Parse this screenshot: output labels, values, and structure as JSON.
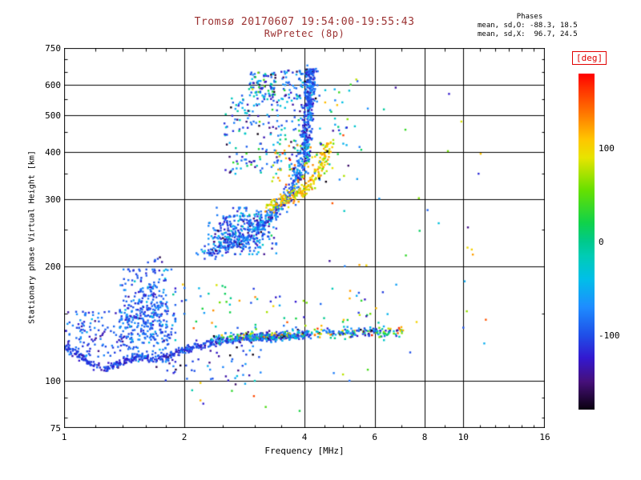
{
  "header": {
    "title": "Tromsø 20170607 19:54:00-19:55:43",
    "subtitle": "RwPretec (8p)",
    "stats": {
      "line0": "Phases",
      "line1": "mean, sd,O: -88.3, 18.5",
      "line2": "mean, sd,X:  96.7, 24.5"
    }
  },
  "colors": {
    "title": "#9b3030",
    "deg_label": "#e00000",
    "axis": "#000000",
    "background": "#ffffff"
  },
  "chart_data": {
    "type": "scatter",
    "title": "Tromsø 20170607 19:54:00-19:55:43",
    "subtitle": "RwPretec (8p)",
    "xlabel": "Frequency [MHz]",
    "ylabel": "Stationary phase Virtual Height [km]",
    "x_scale": "log",
    "y_scale": "log",
    "xlim": [
      1,
      16
    ],
    "ylim": [
      75,
      750
    ],
    "x_ticks": [
      1,
      2,
      4,
      6,
      8,
      10,
      16
    ],
    "x_tick_labels": [
      "1",
      "2",
      "4",
      "6",
      "8",
      "10",
      "16"
    ],
    "x_minor_ticks": [
      1.2,
      1.4,
      1.6,
      1.8,
      2.5,
      3,
      3.5,
      4.5,
      5,
      5.5,
      7,
      9,
      11,
      12,
      13,
      14,
      15
    ],
    "y_ticks": [
      75,
      100,
      200,
      300,
      400,
      500,
      600,
      750
    ],
    "y_tick_labels": [
      "75",
      "100",
      "200",
      "300",
      "400",
      "500",
      "600",
      "750"
    ],
    "y_minor_ticks": [
      80,
      90,
      150,
      250,
      350,
      450,
      550,
      650,
      700
    ],
    "grid_x": [
      2,
      4,
      6,
      8,
      10
    ],
    "grid_y": [
      100,
      200,
      300,
      400,
      500,
      600
    ],
    "grid": true,
    "legend": "colorbar-right",
    "stats_o": {
      "mean": -88.3,
      "sd": 18.5
    },
    "stats_x": {
      "mean": 96.7,
      "sd": 24.5
    },
    "colorbar": {
      "label": "[deg]",
      "ticks": [
        100,
        0,
        -100
      ],
      "tick_labels": [
        "100",
        "0",
        "-100"
      ],
      "range": [
        -180,
        180
      ],
      "stops": [
        [
          -180,
          "#0a000f"
        ],
        [
          -150,
          "#46107a"
        ],
        [
          -125,
          "#3318cf"
        ],
        [
          -100,
          "#1f4fe8"
        ],
        [
          -70,
          "#1e8dff"
        ],
        [
          -40,
          "#00bfe8"
        ],
        [
          -15,
          "#00ccb4"
        ],
        [
          0,
          "#00c98c"
        ],
        [
          20,
          "#10d24a"
        ],
        [
          55,
          "#66e000"
        ],
        [
          90,
          "#e8e400"
        ],
        [
          110,
          "#ffc400"
        ],
        [
          140,
          "#ff7000"
        ],
        [
          165,
          "#ff2e00"
        ],
        [
          180,
          "#ff0000"
        ]
      ]
    },
    "clusters": [
      {
        "name": "bottom-trace-dense",
        "kind": "path",
        "pts": [
          [
            1.0,
            122
          ],
          [
            1.08,
            117
          ],
          [
            1.17,
            110
          ],
          [
            1.28,
            107
          ],
          [
            1.4,
            112
          ],
          [
            1.55,
            116
          ],
          [
            1.7,
            113
          ],
          [
            1.85,
            117
          ],
          [
            2.0,
            120
          ],
          [
            2.2,
            124
          ],
          [
            2.5,
            127
          ],
          [
            2.9,
            129
          ],
          [
            3.3,
            130
          ],
          [
            3.7,
            131
          ],
          [
            4.1,
            132
          ]
        ],
        "n": 520,
        "jf": 0.004,
        "jh": 0.005,
        "phase": {
          "mean": -108,
          "sd": 16
        }
      },
      {
        "name": "bottom-left-cloud",
        "kind": "blob",
        "f": [
          1.0,
          1.5
        ],
        "h": [
          115,
          152
        ],
        "n": 150,
        "phase": {
          "mean": -92,
          "sd": 22
        }
      },
      {
        "name": "e-region-burst",
        "kind": "blob",
        "dist": "gauss",
        "f": [
          1.38,
          1.9
        ],
        "h": [
          112,
          196
        ],
        "n": 380,
        "phase": {
          "mean": -90,
          "sd": 22
        }
      },
      {
        "name": "e-burst-top",
        "kind": "blob",
        "f": [
          1.5,
          1.8
        ],
        "h": [
          182,
          212
        ],
        "n": 18,
        "phase": {
          "mean": -85,
          "sd": 30
        }
      },
      {
        "name": "low-band-mixed",
        "kind": "path",
        "pts": [
          [
            2.4,
            129
          ],
          [
            3.0,
            131
          ],
          [
            3.6,
            132
          ],
          [
            4.2,
            133
          ],
          [
            4.8,
            133
          ],
          [
            5.4,
            134
          ],
          [
            6.0,
            134
          ],
          [
            6.6,
            134
          ],
          [
            7.0,
            135
          ]
        ],
        "n": 240,
        "jf": 0.004,
        "jh": 0.006,
        "phase": {
          "min": -170,
          "max": 170
        }
      },
      {
        "name": "low-band-blue",
        "kind": "path",
        "pts": [
          [
            2.3,
            128
          ],
          [
            3.0,
            130
          ],
          [
            3.8,
            132
          ],
          [
            4.6,
            133
          ],
          [
            5.4,
            134
          ],
          [
            6.2,
            134
          ]
        ],
        "n": 150,
        "jf": 0.004,
        "jh": 0.007,
        "phase": {
          "mean": -75,
          "sd": 45
        }
      },
      {
        "name": "low-scatter",
        "kind": "blob",
        "f": [
          1.8,
          6.5
        ],
        "h": [
          136,
          180
        ],
        "n": 70,
        "phase": {
          "min": -150,
          "max": 150
        }
      },
      {
        "name": "low-under",
        "kind": "blob",
        "f": [
          1.7,
          3.2
        ],
        "h": [
          100,
          124
        ],
        "n": 55,
        "phase": {
          "mean": -105,
          "sd": 35
        }
      },
      {
        "name": "f-trace-o",
        "kind": "path",
        "pts": [
          [
            2.25,
            215
          ],
          [
            2.4,
            220
          ],
          [
            2.6,
            228
          ],
          [
            2.8,
            237
          ],
          [
            3.0,
            248
          ],
          [
            3.2,
            262
          ],
          [
            3.4,
            280
          ],
          [
            3.6,
            300
          ],
          [
            3.75,
            322
          ],
          [
            3.88,
            352
          ],
          [
            3.98,
            395
          ],
          [
            4.05,
            450
          ],
          [
            4.1,
            520
          ],
          [
            4.13,
            600
          ],
          [
            4.15,
            650
          ]
        ],
        "n": 640,
        "jf": 0.008,
        "jh": 0.011,
        "phase": {
          "mean": -90,
          "sd": 28
        }
      },
      {
        "name": "f-cusp-cloud",
        "kind": "blob",
        "dist": "gauss",
        "f": [
          2.3,
          3.4
        ],
        "h": [
          215,
          285
        ],
        "n": 300,
        "phase": {
          "mean": -85,
          "sd": 34
        }
      },
      {
        "name": "x-trace",
        "kind": "path",
        "pts": [
          [
            3.2,
            288
          ],
          [
            3.45,
            295
          ],
          [
            3.7,
            302
          ],
          [
            3.95,
            313
          ],
          [
            4.15,
            330
          ],
          [
            4.35,
            355
          ],
          [
            4.5,
            390
          ],
          [
            4.6,
            420
          ]
        ],
        "n": 220,
        "jf": 0.006,
        "jh": 0.009,
        "phase": {
          "mean": 100,
          "sd": 22
        }
      },
      {
        "name": "x-trace-halo",
        "kind": "blob",
        "f": [
          3.3,
          4.4
        ],
        "h": [
          300,
          420
        ],
        "n": 40,
        "phase": {
          "mean": 108,
          "sd": 30
        }
      },
      {
        "name": "upper-scatter",
        "kind": "blob",
        "f": [
          2.5,
          4.15
        ],
        "h": [
          350,
          565
        ],
        "n": 210,
        "phase": {
          "mean": -72,
          "sd": 55
        }
      },
      {
        "name": "upper-top-cloud",
        "kind": "blob",
        "f": [
          2.9,
          3.4
        ],
        "h": [
          550,
          648
        ],
        "n": 85,
        "phase": {
          "mean": -60,
          "sd": 65
        }
      },
      {
        "name": "upper-top-right",
        "kind": "blob",
        "f": [
          3.5,
          4.25
        ],
        "h": [
          550,
          660
        ],
        "n": 80,
        "phase": {
          "mean": -85,
          "sd": 45
        }
      },
      {
        "name": "asymptote-column",
        "kind": "blob",
        "f": [
          4.04,
          4.24
        ],
        "h": [
          520,
          660
        ],
        "n": 70,
        "phase": {
          "mean": -95,
          "sd": 18
        }
      },
      {
        "name": "right-of-trace",
        "kind": "blob",
        "f": [
          4.2,
          5.6
        ],
        "h": [
          330,
          620
        ],
        "n": 45,
        "phase": {
          "mean": -40,
          "sd": 85
        }
      },
      {
        "name": "sparse-outliers",
        "kind": "blob",
        "f": [
          4.6,
          11.5
        ],
        "h": [
          100,
          620
        ],
        "n": 42,
        "phase": {
          "min": -170,
          "max": 170
        }
      },
      {
        "name": "bottom-sparse",
        "kind": "blob",
        "f": [
          1.5,
          5.5
        ],
        "h": [
          78,
          100
        ],
        "n": 12,
        "phase": {
          "min": -170,
          "max": 170
        }
      },
      {
        "name": "right-orange-pair",
        "kind": "blob",
        "f": [
          10.2,
          10.7
        ],
        "h": [
          212,
          228
        ],
        "n": 3,
        "phase": {
          "mean": 120,
          "sd": 25
        }
      }
    ]
  }
}
